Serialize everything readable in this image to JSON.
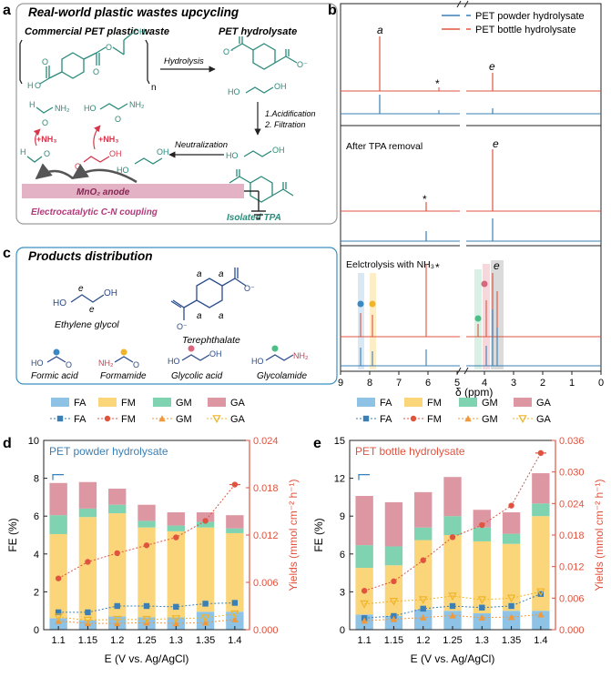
{
  "panel_labels": {
    "a": "a",
    "b": "b",
    "c": "c",
    "d": "d",
    "e": "e"
  },
  "panel_a": {
    "title": "Real-world plastic wastes upcycling",
    "pet_waste": "Commercial PET plastic waste",
    "hydrolysate": "PET hydrolysate",
    "hydrolysis": "Hydrolysis",
    "step1": "1.Acidification",
    "step2": "2. Filtration",
    "neutralization": "Neutralization",
    "isolated": "Isolated TPA",
    "anode": "MnO₂ anode",
    "coupling": "Electrocatalytic C-N coupling",
    "nh3": "+NH₃",
    "repeat_n": "n",
    "atoms": {
      "O": "O",
      "OH": "OH",
      "HO": "HO",
      "H": "H",
      "NH2": "NH₂",
      "O_minus": "O⁻"
    }
  },
  "panel_c": {
    "title": "Products distribution",
    "eg": "Ethylene glycol",
    "tpa": "Terephthalate",
    "fa": "Formic acid",
    "fm": "Formamide",
    "ga": "Glycolic acid",
    "gm": "Glycolamide",
    "label_e": "e",
    "label_a": "a"
  },
  "panel_b": {
    "legend": [
      "PET powder hydrolysate",
      "PET bottle hydrolysate"
    ],
    "colors": {
      "powder": "#3a7fb5",
      "bottle": "#e0533f"
    },
    "sub2_label": "After TPA removal",
    "sub3_label": "Eelctrolysis with NH₃",
    "peak_a": "a",
    "peak_e": "e",
    "star": "*",
    "xlabel": "δ (ppm)",
    "xticks": [
      "9",
      "8",
      "7",
      "6",
      "5",
      "4",
      "3",
      "2",
      "1",
      "0"
    ]
  },
  "chart_data": [
    {
      "type": "bar",
      "title": "PET powder hydrolysate",
      "categories": [
        "1.1",
        "1.15",
        "1.2",
        "1.25",
        "1.3",
        "1.35",
        "1.4"
      ],
      "xlabel": "E (V vs. Ag/AgCl)",
      "ylabel": "FE (%)",
      "ylabel_right": "Yields (mmol cm⁻² h⁻¹)",
      "ylim": [
        0,
        10
      ],
      "yticks": [
        "0",
        "2",
        "4",
        "6",
        "8",
        "10"
      ],
      "ylim_right": [
        0,
        0.024
      ],
      "yticks_right": [
        "0.000",
        "0.006",
        "0.012",
        "0.018",
        "0.024"
      ],
      "series": [
        {
          "name": "FA",
          "color": "#8ec3e6",
          "values": [
            0.6,
            0.5,
            0.7,
            0.65,
            0.65,
            0.95,
            0.95
          ]
        },
        {
          "name": "FM",
          "color": "#fad57a",
          "values": [
            4.45,
            5.45,
            5.45,
            4.75,
            4.55,
            4.45,
            4.15
          ]
        },
        {
          "name": "GM",
          "color": "#7fd3b0",
          "values": [
            1.0,
            0.45,
            0.45,
            0.35,
            0.3,
            0.3,
            0.25
          ]
        },
        {
          "name": "GA",
          "color": "#dd97a3",
          "values": [
            1.7,
            1.4,
            0.85,
            0.85,
            0.7,
            0.5,
            0.7
          ]
        }
      ],
      "yield_series": [
        {
          "name": "FA",
          "color": "#3a7fb5",
          "values": [
            0.0022,
            0.0022,
            0.003,
            0.003,
            0.0029,
            0.0033,
            0.0034
          ]
        },
        {
          "name": "FM",
          "color": "#e0533f",
          "values": [
            0.0065,
            0.0086,
            0.0097,
            0.0107,
            0.0117,
            0.0138,
            0.0184
          ]
        },
        {
          "name": "GM",
          "color": "#f0983a",
          "values": [
            0.0011,
            0.0008,
            0.0008,
            0.0009,
            0.0008,
            0.0009,
            0.0013
          ]
        },
        {
          "name": "GA",
          "color": "#f0b429",
          "values": [
            0.0016,
            0.0012,
            0.0013,
            0.0013,
            0.0014,
            0.0015,
            0.002
          ]
        }
      ]
    },
    {
      "type": "bar",
      "title": "PET bottle hydrolysate",
      "categories": [
        "1.1",
        "1.15",
        "1.2",
        "1.25",
        "1.3",
        "1.35",
        "1.4"
      ],
      "xlabel": "E (V vs. Ag/AgCl)",
      "ylabel": "FE (%)",
      "ylabel_right": "Yields (mmol cm⁻² h⁻¹)",
      "ylim": [
        0,
        15
      ],
      "yticks": [
        "0",
        "3",
        "6",
        "9",
        "12",
        "15"
      ],
      "ylim_right": [
        0,
        0.036
      ],
      "yticks_right": [
        "0.000",
        "0.006",
        "0.012",
        "0.018",
        "0.024",
        "0.030",
        "0.036"
      ],
      "series": [
        {
          "name": "FA",
          "color": "#8ec3e6",
          "values": [
            1.2,
            1.1,
            1.6,
            1.5,
            1.3,
            1.5,
            1.5
          ]
        },
        {
          "name": "FM",
          "color": "#fad57a",
          "values": [
            3.7,
            4.0,
            5.5,
            6.0,
            5.7,
            5.3,
            7.5
          ]
        },
        {
          "name": "GM",
          "color": "#7fd3b0",
          "values": [
            1.8,
            1.5,
            1.0,
            1.5,
            1.1,
            0.8,
            1.0
          ]
        },
        {
          "name": "GA",
          "color": "#dd97a3",
          "values": [
            3.9,
            3.5,
            2.8,
            3.1,
            1.4,
            1.7,
            2.4
          ]
        }
      ],
      "yield_series": [
        {
          "name": "FA",
          "color": "#3a7fb5",
          "values": [
            0.0022,
            0.0026,
            0.004,
            0.0045,
            0.0042,
            0.0045,
            0.0068
          ]
        },
        {
          "name": "FM",
          "color": "#e0533f",
          "values": [
            0.0074,
            0.0092,
            0.0132,
            0.0176,
            0.0199,
            0.0236,
            0.0336
          ]
        },
        {
          "name": "GM",
          "color": "#f0983a",
          "values": [
            0.0017,
            0.002,
            0.0023,
            0.0027,
            0.0023,
            0.0024,
            0.0029
          ]
        },
        {
          "name": "GA",
          "color": "#f0b429",
          "values": [
            0.0049,
            0.0054,
            0.0057,
            0.0064,
            0.0057,
            0.006,
            0.0072
          ]
        }
      ]
    }
  ]
}
